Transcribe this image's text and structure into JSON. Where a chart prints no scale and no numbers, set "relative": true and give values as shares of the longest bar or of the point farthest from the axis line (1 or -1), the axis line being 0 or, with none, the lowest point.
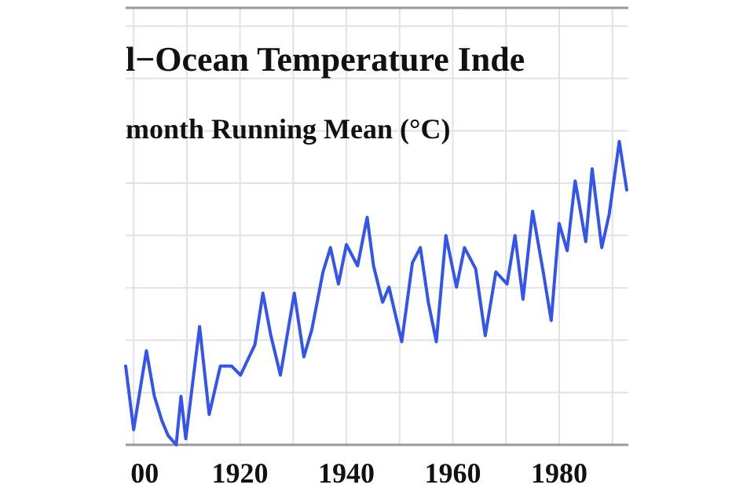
{
  "chart_data": {
    "type": "line",
    "title": "l−Ocean Temperature Inde",
    "subtitle": "month Running Mean (°C)",
    "relative": true,
    "grid": true,
    "marker": "none",
    "line_style": "solid",
    "xlim": [
      1898.5,
      1993
    ],
    "xticks": [
      {
        "value": 1900,
        "label": "00"
      },
      {
        "value": 1910,
        "label": null
      },
      1920,
      {
        "value": 1930,
        "label": null
      },
      1940,
      {
        "value": 1950,
        "label": null
      },
      1960,
      {
        "value": 1970,
        "label": null
      },
      1980,
      {
        "value": 1990,
        "label": null
      }
    ],
    "series": [
      {
        "color": "#3355ee",
        "x": [
          1898.5,
          1900,
          1902.4,
          1903.9,
          1905.3,
          1906.5,
          1908,
          1908.9,
          1909.8,
          1912.4,
          1914.2,
          1916.3,
          1918.4,
          1920.1,
          1922.8,
          1924.3,
          1925.8,
          1927.6,
          1930.2,
          1932,
          1933.5,
          1935.6,
          1937,
          1938.5,
          1940,
          1942.1,
          1943.9,
          1945.1,
          1946.8,
          1948,
          1950.4,
          1952.4,
          1953.9,
          1955.4,
          1956.9,
          1958.7,
          1960.7,
          1962.2,
          1964.3,
          1966.1,
          1968.1,
          1970.2,
          1971.7,
          1973.2,
          1975,
          1977,
          1978.5,
          1980,
          1981.5,
          1983,
          1985,
          1986.2,
          1988,
          1989.4,
          1991.3,
          1992.7
        ],
        "values": [
          0.26,
          0.05,
          0.31,
          0.16,
          0.08,
          0.03,
          0.0,
          0.16,
          0.02,
          0.39,
          0.1,
          0.26,
          0.26,
          0.23,
          0.33,
          0.5,
          0.36,
          0.23,
          0.5,
          0.29,
          0.38,
          0.57,
          0.65,
          0.53,
          0.66,
          0.59,
          0.75,
          0.59,
          0.47,
          0.52,
          0.34,
          0.6,
          0.65,
          0.47,
          0.34,
          0.69,
          0.52,
          0.65,
          0.58,
          0.36,
          0.57,
          0.53,
          0.69,
          0.48,
          0.77,
          0.57,
          0.41,
          0.73,
          0.64,
          0.87,
          0.67,
          0.91,
          0.65,
          0.76,
          1.0,
          0.84
        ]
      }
    ]
  }
}
